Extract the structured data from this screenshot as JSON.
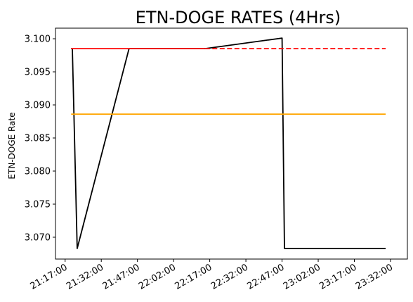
{
  "chart_data": {
    "type": "line",
    "title": "ETN-DOGE RATES (4Hrs)",
    "xlabel": "",
    "ylabel": "ETN-DOGE Rate",
    "x_ticks": [
      "21:17:00",
      "21:32:00",
      "21:47:00",
      "22:02:00",
      "22:17:00",
      "22:32:00",
      "22:47:00",
      "23:02:00",
      "23:17:00",
      "23:32:00"
    ],
    "y_ticks": [
      "3.070",
      "3.075",
      "3.080",
      "3.085",
      "3.090",
      "3.095",
      "3.100"
    ],
    "xlim": [
      "21:13:00",
      "23:39:00"
    ],
    "ylim": [
      3.0667,
      3.1016
    ],
    "grid": false,
    "series": [
      {
        "color": "#000000",
        "style": "solid",
        "x": [
          "21:19:30",
          "21:20:00",
          "21:22:00",
          "21:43:30",
          "21:44:00",
          "22:15:00",
          "22:47:00",
          "22:48:00",
          "23:30:00"
        ],
        "y": [
          3.0985,
          3.0985,
          3.0683,
          3.0985,
          3.0985,
          3.0985,
          3.1001,
          3.0683,
          3.0683
        ]
      },
      {
        "color": "#ff0000",
        "style": "solid",
        "x": [
          "21:19:30",
          "22:15:00"
        ],
        "y": [
          3.0985,
          3.0985
        ]
      },
      {
        "color": "#ff0000",
        "style": "dashed",
        "x": [
          "22:15:00",
          "23:30:00"
        ],
        "y": [
          3.0985,
          3.0985
        ]
      },
      {
        "color": "#ffa500",
        "style": "solid",
        "x": [
          "21:19:30",
          "23:30:00"
        ],
        "y": [
          3.0886,
          3.0886
        ]
      }
    ]
  }
}
